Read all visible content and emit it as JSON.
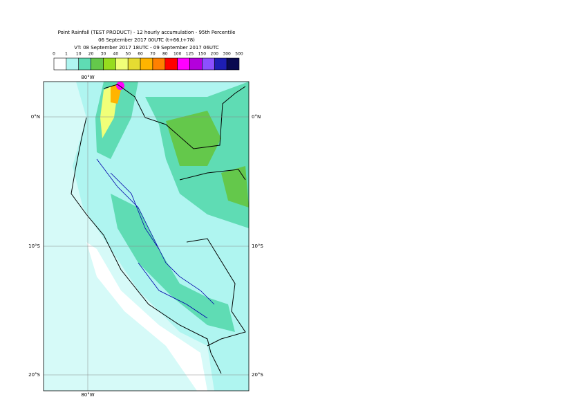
{
  "header": {
    "title": "Point Rainfall (TEST PRODUCT) - 12 hourly accumulation - 95th Percentile",
    "base_time": "06 September 2017 00UTC (t+66,t+78)",
    "valid_time": "VT: 08 September 2017 18UTC - 09 September 2017 06UTC"
  },
  "legend": {
    "ticks": [
      0,
      1,
      10,
      20,
      30,
      40,
      50,
      60,
      70,
      80,
      100,
      125,
      150,
      200,
      300,
      500
    ],
    "colors": [
      "#ffffff",
      "#aff5f0",
      "#5fdcb4",
      "#64c84b",
      "#96dc1e",
      "#f0ff78",
      "#e6dc32",
      "#ffb400",
      "#ff8000",
      "#ff0000",
      "#ff00ff",
      "#b400dc",
      "#8c50ff",
      "#1e1eb4",
      "#0a0a50"
    ]
  },
  "map": {
    "lon_label": "80°W",
    "lat_labels": [
      "0°N",
      "10°S",
      "20°S"
    ]
  }
}
